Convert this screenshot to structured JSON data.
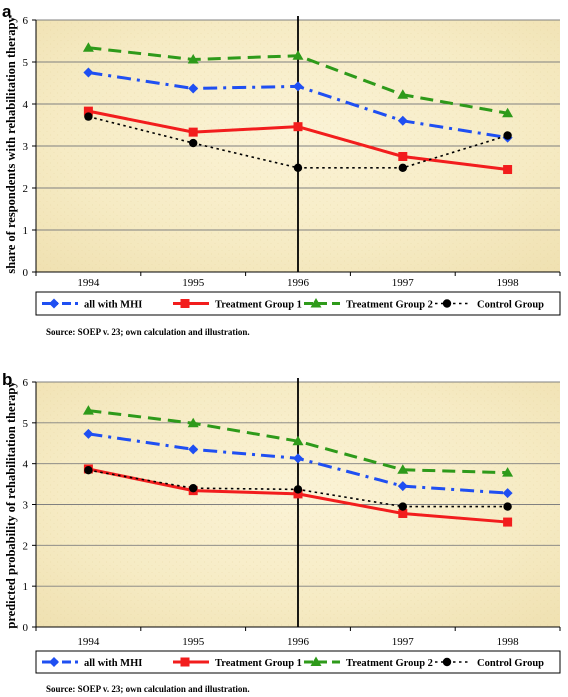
{
  "chart_data": [
    {
      "panel": "a",
      "type": "line",
      "ylabel": "share of respondents with rehabilitation therapy",
      "xlabel": "",
      "categories": [
        "1994",
        "1995",
        "1996",
        "1997",
        "1998"
      ],
      "ylim": [
        0,
        6
      ],
      "yticks": [
        "0",
        "1",
        "2",
        "3",
        "4",
        "5",
        "6"
      ],
      "vertical_line_at": "1996",
      "grid": true,
      "legend_position": "bottom",
      "series": [
        {
          "name": "all with MHI",
          "color": "#1f4ff2",
          "dash": "dashdot",
          "marker": "diamond",
          "values": [
            4.75,
            4.37,
            4.42,
            3.6,
            3.2
          ]
        },
        {
          "name": "Treatment Group 1",
          "color": "#f21d1d",
          "dash": "solid",
          "marker": "square",
          "values": [
            3.83,
            3.33,
            3.46,
            2.75,
            2.44
          ]
        },
        {
          "name": "Treatment Group 2",
          "color": "#2e9a1a",
          "dash": "dash",
          "marker": "triangle",
          "values": [
            5.34,
            5.06,
            5.15,
            4.22,
            3.78
          ]
        },
        {
          "name": "Control Group",
          "color": "#000000",
          "dash": "dot",
          "marker": "circle",
          "values": [
            3.7,
            3.07,
            2.48,
            2.48,
            3.25
          ]
        }
      ],
      "source": "Source: SOEP v. 23; own calculation and illustration."
    },
    {
      "panel": "b",
      "type": "line",
      "ylabel": "predicted probability of rehabilitation therapy",
      "xlabel": "",
      "categories": [
        "1994",
        "1995",
        "1996",
        "1997",
        "1998"
      ],
      "ylim": [
        0,
        6
      ],
      "yticks": [
        "0",
        "1",
        "2",
        "3",
        "4",
        "5",
        "6"
      ],
      "vertical_line_at": "1996",
      "grid": true,
      "legend_position": "bottom",
      "series": [
        {
          "name": "all with MHI",
          "color": "#1f4ff2",
          "dash": "dashdot",
          "marker": "diamond",
          "values": [
            4.73,
            4.35,
            4.13,
            3.45,
            3.28
          ]
        },
        {
          "name": "Treatment Group 1",
          "color": "#f21d1d",
          "dash": "solid",
          "marker": "square",
          "values": [
            3.87,
            3.34,
            3.26,
            2.78,
            2.57
          ]
        },
        {
          "name": "Treatment Group 2",
          "color": "#2e9a1a",
          "dash": "dash",
          "marker": "triangle",
          "values": [
            5.3,
            4.99,
            4.55,
            3.85,
            3.78
          ]
        },
        {
          "name": "Control Group",
          "color": "#000000",
          "dash": "dot",
          "marker": "circle",
          "values": [
            3.84,
            3.4,
            3.37,
            2.95,
            2.95
          ]
        }
      ],
      "source": "Source: SOEP v. 23; own calculation and illustration."
    }
  ]
}
